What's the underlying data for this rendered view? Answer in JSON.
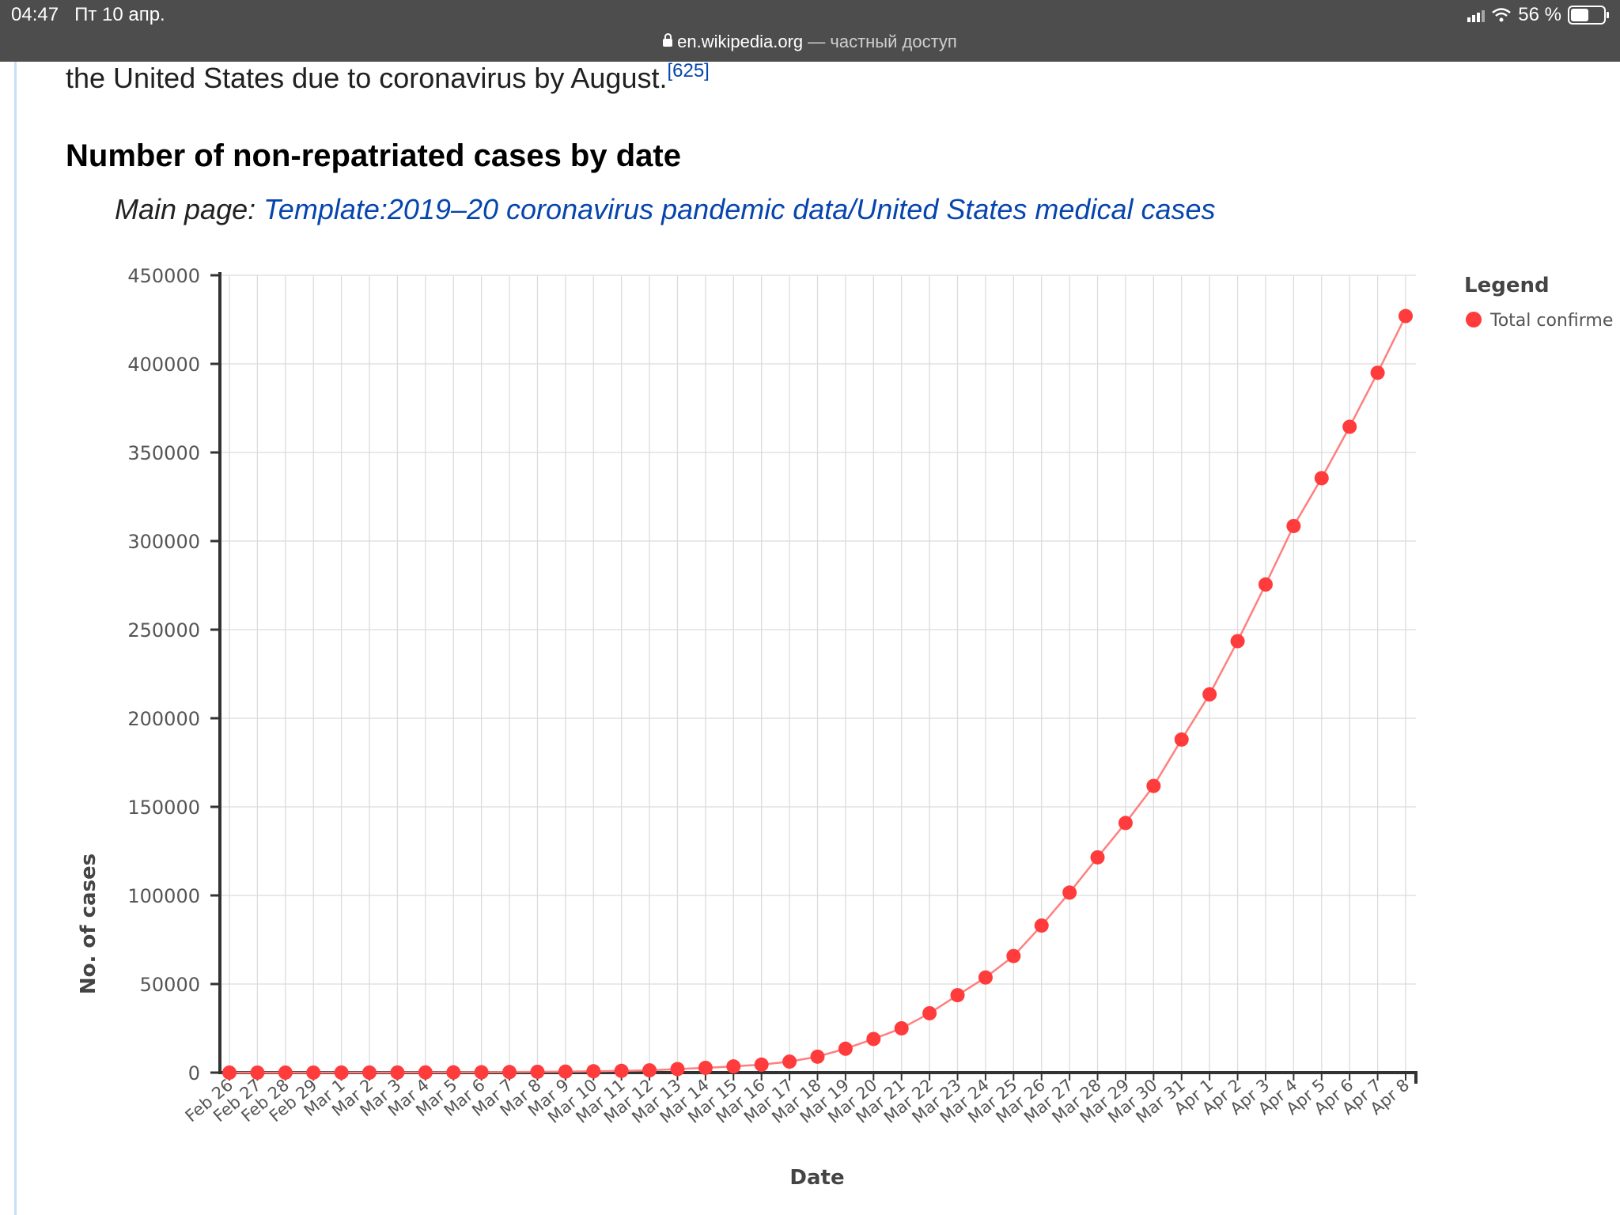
{
  "status_bar": {
    "time": "04:47",
    "date": "Пт 10 апр.",
    "battery": "56 %",
    "battery_level": 0.56
  },
  "address_bar": {
    "domain": "en.wikipedia.org",
    "suffix": "— частный доступ"
  },
  "article": {
    "intro_text": "the United States due to coronavirus by August.",
    "intro_ref": "[625]",
    "section_heading": "Number of non-repatriated cases by date",
    "hatnote_prefix": "Main page: ",
    "hatnote_link": "Template:2019–20 coronavirus pandemic data/United States medical cases"
  },
  "colors": {
    "series": "#ff3b3b",
    "series_line": "#ff7f7f",
    "link": "#0645ad",
    "status_bar": "#4d4d4d"
  },
  "chart_data": {
    "type": "line",
    "xlabel": "Date",
    "ylabel": "No. of cases",
    "ylim": [
      0,
      450000
    ],
    "yticks": [
      "0",
      "50000",
      "100000",
      "150000",
      "200000",
      "250000",
      "300000",
      "350000",
      "400000",
      "450000"
    ],
    "grid": true,
    "legend": {
      "title": "Legend",
      "placement": "top-right",
      "entries": [
        "Total confirme"
      ]
    },
    "categories": [
      "Feb 26",
      "Feb 27",
      "Feb 28",
      "Feb 29",
      "Mar 1",
      "Mar 2",
      "Mar 3",
      "Mar 4",
      "Mar 5",
      "Mar 6",
      "Mar 7",
      "Mar 8",
      "Mar 9",
      "Mar 10",
      "Mar 11",
      "Mar 12",
      "Mar 13",
      "Mar 14",
      "Mar 15",
      "Mar 16",
      "Mar 17",
      "Mar 18",
      "Mar 19",
      "Mar 20",
      "Mar 21",
      "Mar 22",
      "Mar 23",
      "Mar 24",
      "Mar 25",
      "Mar 26",
      "Mar 27",
      "Mar 28",
      "Mar 29",
      "Mar 30",
      "Mar 31",
      "Apr 1",
      "Apr 2",
      "Apr 3",
      "Apr 4",
      "Apr 5",
      "Apr 6",
      "Apr 7",
      "Apr 8"
    ],
    "series": [
      {
        "values": [
          15,
          15,
          16,
          24,
          30,
          53,
          80,
          125,
          150,
          220,
          330,
          450,
          560,
          760,
          1000,
          1300,
          2000,
          2700,
          3500,
          4500,
          6200,
          9000,
          13500,
          19000,
          25000,
          33500,
          43700,
          53700,
          65800,
          83000,
          101600,
          121500,
          140900,
          161800,
          188000,
          213500,
          243500,
          275500,
          308500,
          335500,
          364500,
          395000,
          427000
        ]
      }
    ]
  }
}
